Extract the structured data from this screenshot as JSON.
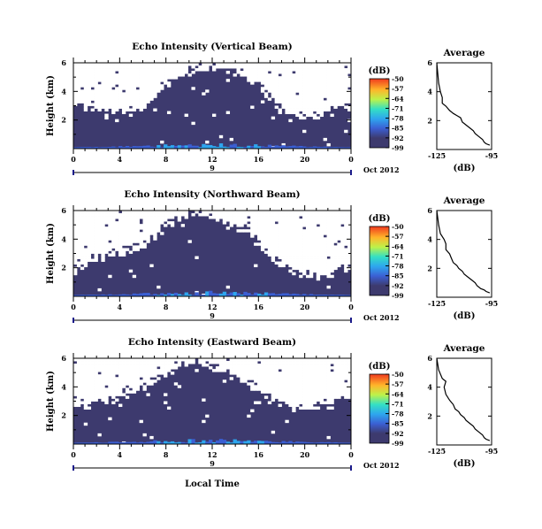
{
  "chart_data": [
    {
      "type": "heatmap",
      "title": "Echo Intensity (Vertical Beam)",
      "ylabel": "Height (km)",
      "xlabel": "",
      "x_ticks": [
        "0",
        "4",
        "8",
        "12",
        "16",
        "20",
        "0"
      ],
      "y_ticks": [
        "6",
        "4",
        "2"
      ],
      "xlim": [
        0,
        24
      ],
      "ylim": [
        0,
        6
      ],
      "date_marker": "9",
      "date_label": "Oct 2012",
      "colorbar": {
        "label": "(dB)",
        "ticks": [
          "-50",
          "-57",
          "-64",
          "-71",
          "-78",
          "-85",
          "-92",
          "-99"
        ],
        "range": [
          -99,
          -50
        ]
      },
      "clear_air_top_km": [
        3.0,
        3.2,
        2.7,
        2.6,
        2.5,
        2.6,
        2.9,
        3.6,
        4.5,
        5.1,
        5.5,
        5.6,
        5.8,
        5.6,
        5.2,
        4.9,
        4.6,
        3.6,
        2.6,
        2.2,
        2.2,
        2.3,
        2.5,
        2.8,
        3.0
      ]
    },
    {
      "type": "line",
      "title": "Average",
      "xlabel": "(dB)",
      "x_ticks": [
        "-125",
        "-95"
      ],
      "y_ticks": [
        "6",
        "4",
        "2"
      ],
      "xlim": [
        -125,
        -95
      ],
      "ylim": [
        0,
        6
      ],
      "series": [
        {
          "x": [
            -125,
            -124,
            -123,
            -122,
            -122,
            -120,
            -118,
            -116,
            -114,
            -112,
            -111,
            -110,
            -108,
            -107,
            -105,
            -104,
            -102,
            -100,
            -99,
            -98,
            -96
          ],
          "y": [
            6.0,
            4.6,
            4.0,
            3.6,
            3.2,
            3.0,
            2.7,
            2.5,
            2.35,
            2.2,
            1.9,
            1.8,
            1.6,
            1.5,
            1.3,
            1.1,
            0.9,
            0.7,
            0.5,
            0.4,
            0.3
          ]
        }
      ]
    },
    {
      "type": "heatmap",
      "title": "Echo Intensity (Northward Beam)",
      "ylabel": "Height (km)",
      "xlabel": "",
      "x_ticks": [
        "0",
        "4",
        "8",
        "12",
        "16",
        "20",
        "0"
      ],
      "y_ticks": [
        "6",
        "4",
        "2"
      ],
      "xlim": [
        0,
        24
      ],
      "ylim": [
        0,
        6
      ],
      "date_marker": "9",
      "date_label": "Oct 2012",
      "colorbar": {
        "label": "(dB)",
        "ticks": [
          "-50",
          "-57",
          "-64",
          "-71",
          "-78",
          "-85",
          "-92",
          "-99"
        ],
        "range": [
          -99,
          -50
        ]
      },
      "clear_air_top_km": [
        1.8,
        2.2,
        2.6,
        2.9,
        3.1,
        3.3,
        3.6,
        4.2,
        4.9,
        5.6,
        5.8,
        5.9,
        5.6,
        5.2,
        5.0,
        4.6,
        3.8,
        2.8,
        2.2,
        1.8,
        1.5,
        1.4,
        1.6,
        1.9,
        2.2
      ]
    },
    {
      "type": "line",
      "title": "Average",
      "xlabel": "(dB)",
      "x_ticks": [
        "-125",
        "-95"
      ],
      "y_ticks": [
        "6",
        "4",
        "2"
      ],
      "xlim": [
        -125,
        -95
      ],
      "ylim": [
        0,
        6
      ],
      "series": [
        {
          "x": [
            -125,
            -124,
            -123,
            -121,
            -120,
            -120,
            -118,
            -117,
            -116,
            -114,
            -113,
            -111,
            -110,
            -108,
            -106,
            -104,
            -103,
            -101,
            -99,
            -98,
            -96
          ],
          "y": [
            6.0,
            5.0,
            4.4,
            4.0,
            3.7,
            3.3,
            3.0,
            2.7,
            2.4,
            2.2,
            2.0,
            1.8,
            1.6,
            1.4,
            1.2,
            1.0,
            0.8,
            0.6,
            0.5,
            0.4,
            0.3
          ]
        }
      ]
    },
    {
      "type": "heatmap",
      "title": "Echo Intensity (Eastward Beam)",
      "ylabel": "Height (km)",
      "xlabel": "Local Time",
      "x_ticks": [
        "0",
        "4",
        "8",
        "12",
        "16",
        "20",
        "0"
      ],
      "y_ticks": [
        "6",
        "4",
        "2"
      ],
      "xlim": [
        0,
        24
      ],
      "ylim": [
        0,
        6
      ],
      "date_marker": "9",
      "date_label": "Oct 2012",
      "colorbar": {
        "label": "(dB)",
        "ticks": [
          "-50",
          "-57",
          "-64",
          "-71",
          "-78",
          "-85",
          "-92",
          "-99"
        ],
        "range": [
          -99,
          -50
        ]
      },
      "clear_air_top_km": [
        2.6,
        2.8,
        3.0,
        3.1,
        3.3,
        3.6,
        4.0,
        4.5,
        5.0,
        5.5,
        5.7,
        5.8,
        5.5,
        5.0,
        4.7,
        4.3,
        3.8,
        3.2,
        2.8,
        2.6,
        2.5,
        2.6,
        2.8,
        3.1,
        3.3
      ]
    },
    {
      "type": "line",
      "title": "Average",
      "xlabel": "(dB)",
      "x_ticks": [
        "-125",
        "-95"
      ],
      "y_ticks": [
        "6",
        "4",
        "2"
      ],
      "xlim": [
        -125,
        -95
      ],
      "ylim": [
        0,
        6
      ],
      "series": [
        {
          "x": [
            -125,
            -124,
            -122,
            -120,
            -121,
            -120,
            -118,
            -116,
            -115,
            -113,
            -112,
            -110,
            -109,
            -107,
            -105,
            -104,
            -102,
            -100,
            -99,
            -98,
            -96
          ],
          "y": [
            6.0,
            5.2,
            4.6,
            4.4,
            4.0,
            3.5,
            3.1,
            2.8,
            2.5,
            2.3,
            2.1,
            1.9,
            1.7,
            1.5,
            1.3,
            1.1,
            0.9,
            0.7,
            0.5,
            0.4,
            0.3
          ]
        }
      ]
    }
  ]
}
